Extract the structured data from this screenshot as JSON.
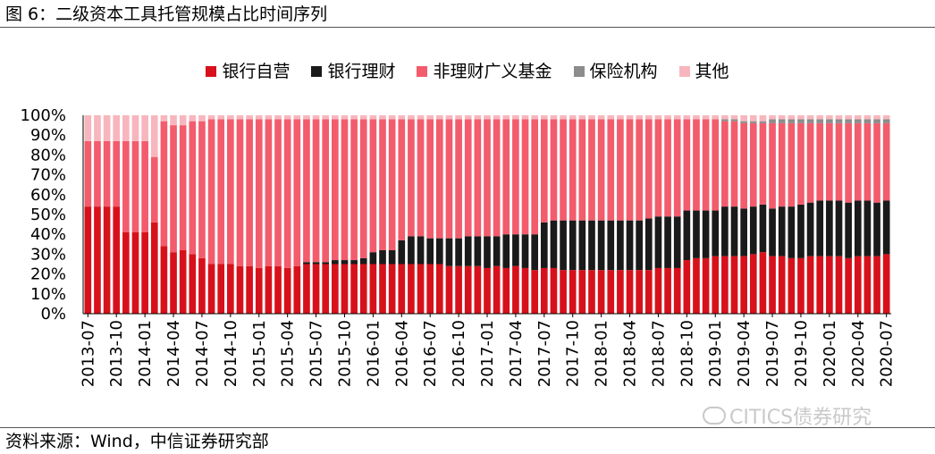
{
  "figure": {
    "title": "图 6：二级资本工具托管规模占比时间序列",
    "source": "资料来源：Wind，中信证券研究部",
    "watermark": "CITICS债券研究"
  },
  "colors": {
    "银行自营": "#d7111b",
    "银行理财": "#1a1a1a",
    "非理财广义基金": "#f25c6c",
    "保险机构": "#8c8c8c",
    "其他": "#f7b6bd"
  },
  "chart_data": {
    "type": "bar",
    "stacked": true,
    "ylim": [
      0,
      100
    ],
    "yticks": [
      "0%",
      "10%",
      "20%",
      "30%",
      "40%",
      "50%",
      "60%",
      "70%",
      "80%",
      "90%",
      "100%"
    ],
    "legend_position": "top",
    "categories": [
      "2013-07",
      "2013-08",
      "2013-09",
      "2013-10",
      "2013-11",
      "2013-12",
      "2014-01",
      "2014-02",
      "2014-03",
      "2014-04",
      "2014-05",
      "2014-06",
      "2014-07",
      "2014-08",
      "2014-09",
      "2014-10",
      "2014-11",
      "2014-12",
      "2015-01",
      "2015-02",
      "2015-03",
      "2015-04",
      "2015-05",
      "2015-06",
      "2015-07",
      "2015-08",
      "2015-09",
      "2015-10",
      "2015-11",
      "2015-12",
      "2016-01",
      "2016-02",
      "2016-03",
      "2016-04",
      "2016-05",
      "2016-06",
      "2016-07",
      "2016-08",
      "2016-09",
      "2016-10",
      "2016-11",
      "2016-12",
      "2017-01",
      "2017-02",
      "2017-03",
      "2017-04",
      "2017-05",
      "2017-06",
      "2017-07",
      "2017-08",
      "2017-09",
      "2017-10",
      "2017-11",
      "2017-12",
      "2018-01",
      "2018-02",
      "2018-03",
      "2018-04",
      "2018-05",
      "2018-06",
      "2018-07",
      "2018-08",
      "2018-09",
      "2018-10",
      "2018-11",
      "2018-12",
      "2019-01",
      "2019-02",
      "2019-03",
      "2019-04",
      "2019-05",
      "2019-06",
      "2019-07",
      "2019-08",
      "2019-09",
      "2019-10",
      "2019-11",
      "2019-12",
      "2020-01",
      "2020-02",
      "2020-03",
      "2020-04",
      "2020-05",
      "2020-06",
      "2020-07"
    ],
    "tick_labels": [
      "2013-07",
      "2013-10",
      "2014-01",
      "2014-04",
      "2014-07",
      "2014-10",
      "2015-01",
      "2015-04",
      "2015-07",
      "2015-10",
      "2016-01",
      "2016-04",
      "2016-07",
      "2016-10",
      "2017-01",
      "2017-04",
      "2017-07",
      "2017-10",
      "2018-01",
      "2018-04",
      "2018-07",
      "2018-10",
      "2019-01",
      "2019-04",
      "2019-07",
      "2019-10",
      "2020-01",
      "2020-04",
      "2020-07"
    ],
    "series": [
      {
        "name": "银行自营",
        "values": [
          54,
          54,
          54,
          54,
          41,
          41,
          41,
          46,
          34,
          31,
          32,
          30,
          28,
          25,
          25,
          25,
          24,
          24,
          23,
          24,
          24,
          23,
          24,
          25,
          25,
          25,
          25,
          25,
          25,
          25,
          25,
          25,
          25,
          25,
          25,
          25,
          25,
          25,
          24,
          24,
          24,
          24,
          23,
          24,
          23,
          24,
          23,
          22,
          23,
          23,
          22,
          22,
          22,
          22,
          22,
          22,
          22,
          22,
          22,
          22,
          23,
          23,
          23,
          27,
          28,
          28,
          29,
          29,
          29,
          29,
          30,
          31,
          29,
          29,
          28,
          28,
          29,
          29,
          29,
          29,
          28,
          29,
          29,
          29,
          30
        ]
      },
      {
        "name": "银行理财",
        "values": [
          0,
          0,
          0,
          0,
          0,
          0,
          0,
          0,
          0,
          0,
          0,
          0,
          0,
          0,
          0,
          0,
          0,
          0,
          0,
          0,
          0,
          0,
          0,
          1,
          1,
          1,
          2,
          2,
          2,
          3,
          6,
          7,
          7,
          12,
          14,
          14,
          13,
          13,
          14,
          14,
          15,
          15,
          16,
          15,
          17,
          16,
          17,
          18,
          23,
          24,
          25,
          25,
          25,
          25,
          25,
          25,
          25,
          25,
          25,
          26,
          26,
          26,
          26,
          25,
          24,
          24,
          23,
          25,
          25,
          24,
          24,
          24,
          24,
          25,
          26,
          27,
          27,
          28,
          28,
          28,
          28,
          28,
          28,
          27,
          27
        ]
      },
      {
        "name": "非理财广义基金",
        "values": [
          33,
          33,
          33,
          33,
          46,
          46,
          46,
          33,
          63,
          64,
          63,
          67,
          69,
          73,
          73,
          73,
          74,
          74,
          75,
          74,
          74,
          75,
          74,
          72,
          72,
          72,
          71,
          71,
          71,
          70,
          67,
          66,
          66,
          61,
          59,
          59,
          60,
          60,
          60,
          60,
          59,
          59,
          59,
          59,
          58,
          58,
          58,
          58,
          52,
          51,
          51,
          51,
          51,
          51,
          51,
          51,
          51,
          51,
          51,
          50,
          49,
          49,
          49,
          46,
          46,
          46,
          46,
          43,
          43,
          43,
          42,
          41,
          43,
          42,
          42,
          41,
          40,
          39,
          39,
          39,
          40,
          39,
          39,
          40,
          39
        ]
      },
      {
        "name": "保险机构",
        "values": [
          0,
          0,
          0,
          0,
          0,
          0,
          0,
          0,
          0,
          0,
          0,
          0,
          0,
          0,
          0,
          0,
          0,
          0,
          0,
          0,
          0,
          0,
          0,
          0,
          0,
          0,
          0,
          0,
          0,
          0,
          0,
          0,
          0,
          0,
          0,
          0,
          0,
          0,
          0,
          0,
          0,
          0,
          0,
          0,
          0,
          0,
          0,
          0,
          0,
          0,
          0,
          0,
          0,
          0,
          0,
          0,
          0,
          0,
          0,
          0,
          0,
          0,
          0,
          0,
          0,
          0,
          0,
          1,
          1,
          1,
          1,
          1,
          2,
          2,
          2,
          2,
          2,
          2,
          2,
          2,
          2,
          2,
          2,
          2,
          2
        ]
      },
      {
        "name": "其他",
        "values": [
          13,
          13,
          13,
          13,
          13,
          13,
          13,
          21,
          3,
          5,
          5,
          3,
          3,
          2,
          2,
          2,
          2,
          2,
          2,
          2,
          2,
          2,
          2,
          2,
          2,
          2,
          2,
          2,
          2,
          2,
          2,
          2,
          2,
          2,
          2,
          2,
          2,
          2,
          2,
          2,
          2,
          2,
          2,
          2,
          2,
          2,
          2,
          2,
          2,
          2,
          2,
          2,
          2,
          2,
          2,
          2,
          2,
          2,
          2,
          2,
          2,
          2,
          2,
          2,
          2,
          2,
          2,
          2,
          2,
          3,
          3,
          3,
          2,
          2,
          2,
          2,
          2,
          2,
          2,
          2,
          2,
          2,
          2,
          2,
          2
        ]
      }
    ]
  }
}
